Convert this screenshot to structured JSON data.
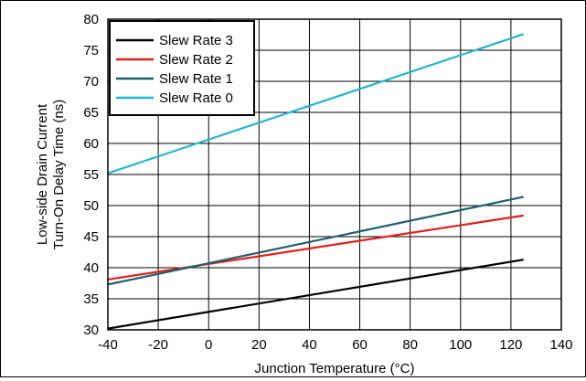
{
  "chart_data": {
    "type": "line",
    "xlabel": "Junction Temperature (°C)",
    "ylabel_lines": [
      "Low-side Drain Current",
      "Turn-On Delay Time (ns)"
    ],
    "xlim": [
      -40,
      140
    ],
    "ylim": [
      30,
      80
    ],
    "xticks": [
      -40,
      -20,
      0,
      20,
      40,
      60,
      80,
      100,
      120,
      140
    ],
    "yticks": [
      30,
      35,
      40,
      45,
      50,
      55,
      60,
      65,
      70,
      75,
      80
    ],
    "grid": true,
    "legend_position": "top-left",
    "series": [
      {
        "name": "Slew Rate 3",
        "color": "#000000",
        "x": [
          -40,
          125
        ],
        "y": [
          30.2,
          41.3
        ]
      },
      {
        "name": "Slew Rate 2",
        "color": "#e02020",
        "x": [
          -40,
          125
        ],
        "y": [
          38.1,
          48.4
        ]
      },
      {
        "name": "Slew Rate 1",
        "color": "#1f5f6b",
        "x": [
          -40,
          125
        ],
        "y": [
          37.3,
          51.4
        ]
      },
      {
        "name": "Slew Rate 0",
        "color": "#22b5cc",
        "x": [
          -40,
          125
        ],
        "y": [
          55.2,
          77.6
        ]
      }
    ]
  }
}
